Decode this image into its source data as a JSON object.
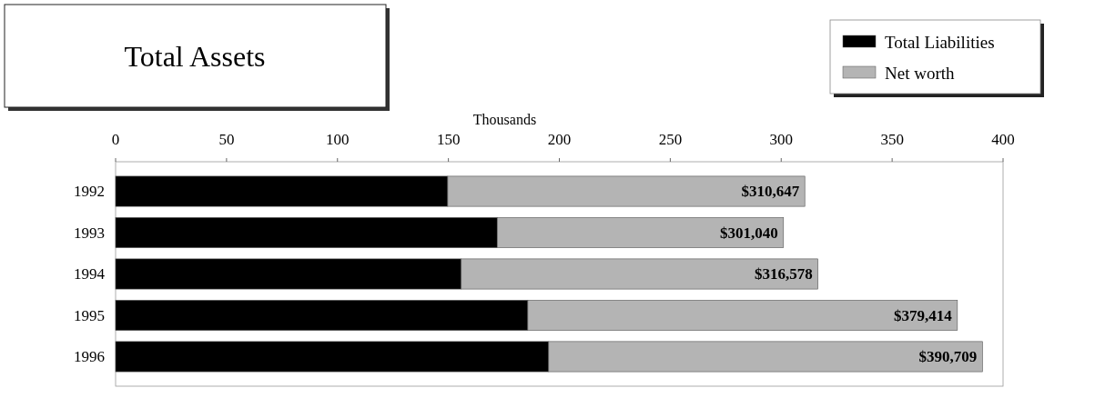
{
  "chart_data": {
    "type": "bar",
    "title": "Total Assets",
    "xlabel": "Thousands",
    "orientation": "horizontal",
    "stacked": true,
    "categories": [
      "1992",
      "1993",
      "1994",
      "1995",
      "1996"
    ],
    "series": [
      {
        "name": "Total Liabilities",
        "color": "#000000",
        "values": [
          149.7,
          172.0,
          155.8,
          185.8,
          195.2
        ]
      },
      {
        "name": "Net worth",
        "color": "#b4b4b4",
        "values": [
          160.947,
          129.04,
          160.778,
          193.614,
          195.509
        ]
      }
    ],
    "totals": [
      "$310,647",
      "$301,040",
      "$316,578",
      "$379,414",
      "$390,709"
    ],
    "xlim": [
      0,
      400
    ],
    "xticks": [
      0,
      50,
      100,
      150,
      200,
      250,
      300,
      350,
      400
    ],
    "legend": "top right"
  }
}
